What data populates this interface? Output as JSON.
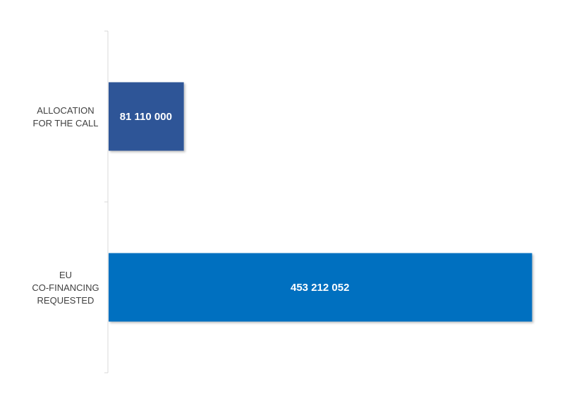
{
  "chart_data": {
    "type": "bar",
    "orientation": "horizontal",
    "categories": [
      [
        "ALLOCATION",
        "FOR THE CALL"
      ],
      [
        "EU",
        "CO-FINANCING",
        "REQUESTED"
      ]
    ],
    "values": [
      81110000,
      453212052
    ],
    "data_labels": [
      "81 110 000",
      "453 212 052"
    ],
    "colors": [
      "#2f5597",
      "#0070c0"
    ],
    "title": "",
    "xlabel": "",
    "ylabel": "",
    "xlim": [
      0,
      480000000
    ],
    "grid": false,
    "legend": "none"
  }
}
